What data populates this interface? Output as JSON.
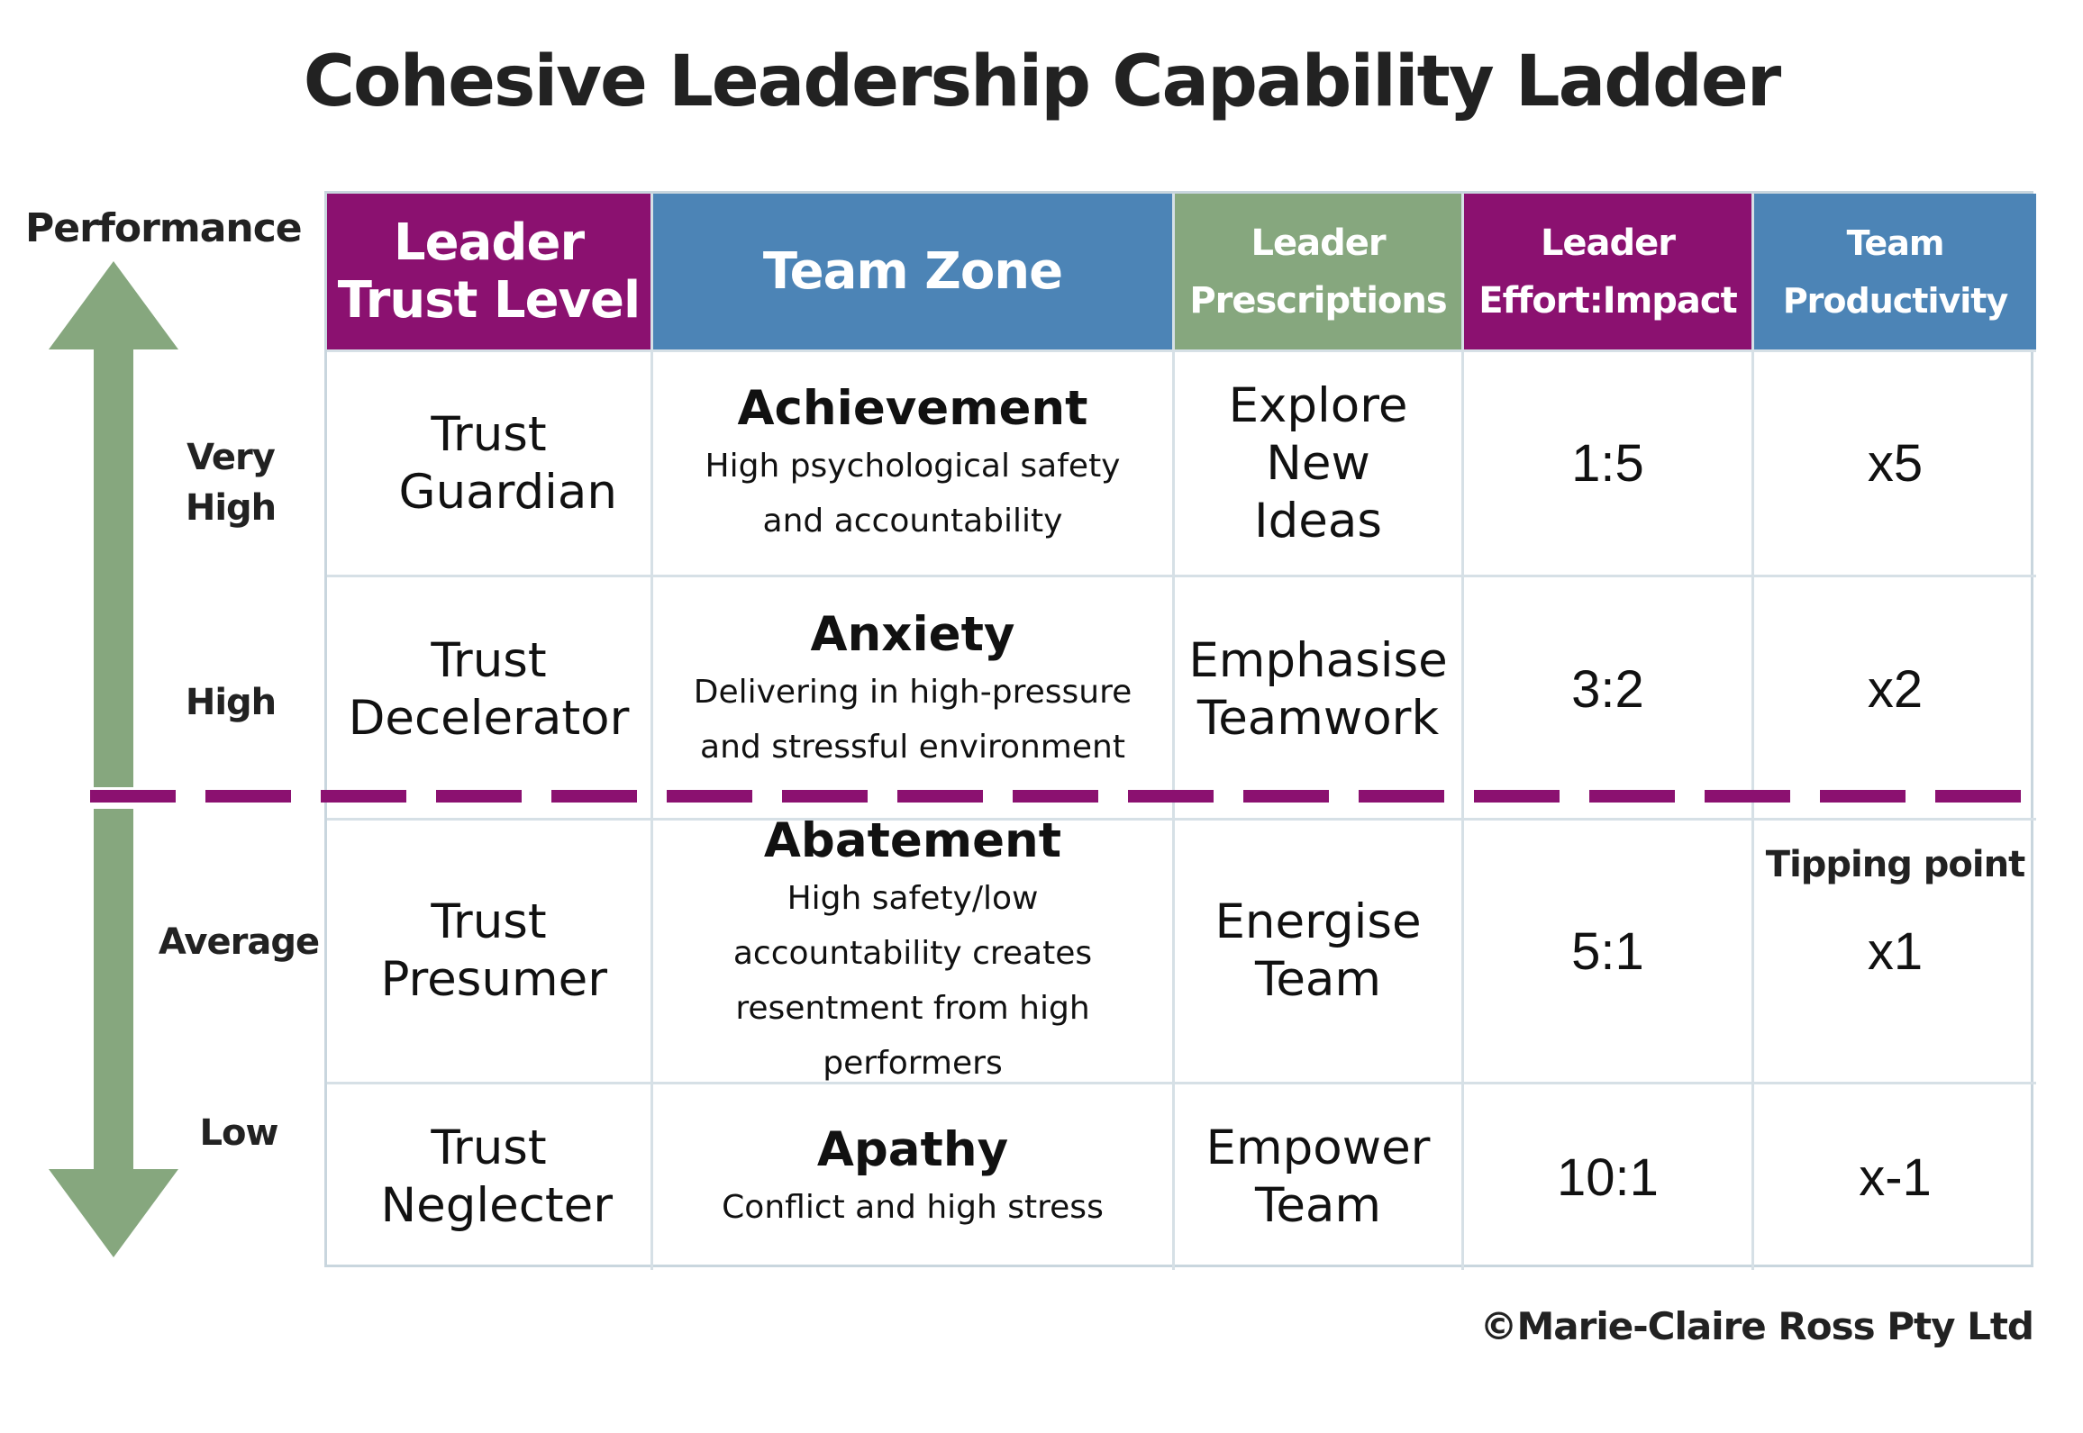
{
  "title": "Cohesive Leadership Capability Ladder",
  "axis": {
    "label": "Performance",
    "levels": [
      "Very High",
      "High",
      "Average",
      "Low"
    ]
  },
  "table": {
    "headers": [
      {
        "label": "Leader Trust Level",
        "color": "#8b1170"
      },
      {
        "label": "Team Zone",
        "color": "#4c84b6"
      },
      {
        "label": "Leader Prescriptions",
        "color": "#86a77e"
      },
      {
        "label": "Leader Effort:Impact",
        "color": "#8b1170"
      },
      {
        "label": "Team Productivity",
        "color": "#4c84b6"
      }
    ],
    "rows": [
      {
        "trust": "Trust Guardian",
        "zone_title": "Achievement",
        "zone_desc": "High psychological safety and accountability",
        "prescription": "Explore New Ideas",
        "effort_impact": "1:5",
        "productivity": "x5"
      },
      {
        "trust": "Trust Decelerator",
        "zone_title": "Anxiety",
        "zone_desc": "Delivering in high-pressure and stressful environment",
        "prescription": "Emphasise Teamwork",
        "effort_impact": "3:2",
        "productivity": "x2"
      },
      {
        "trust": "Trust Presumer",
        "zone_title": "Abatement",
        "zone_desc": "High safety/low accountability creates resentment from high performers",
        "prescription": "Energise Team",
        "effort_impact": "5:1",
        "productivity": "x1",
        "note": "Tipping point"
      },
      {
        "trust": "Trust Neglecter",
        "zone_title": "Apathy",
        "zone_desc": "Conflict and high stress",
        "prescription": "Empower Team",
        "effort_impact": "10:1",
        "productivity": "x-1"
      }
    ]
  },
  "colors": {
    "arrow": "#86a77e",
    "divider": "#8b1170",
    "purple": "#8b1170",
    "blue": "#4c84b6",
    "green": "#86a77e"
  },
  "copyright": "©Marie-Claire Ross Pty Ltd"
}
